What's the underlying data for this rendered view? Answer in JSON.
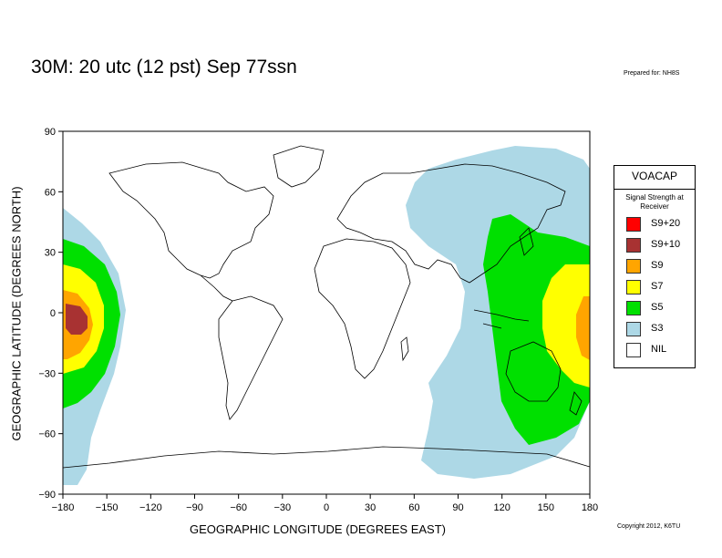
{
  "title": "30M:  20 utc (12 pst) Sep 77ssn",
  "prepared_for": "Prepared for: NH8S",
  "copyright": "Copyright 2012, K6TU",
  "xlabel": "GEOGRAPHIC LONGITUDE (DEGREES EAST)",
  "ylabel": "GEOGRAPHIC LATITUDE (DEGREES NORTH)",
  "x_ticks": [
    "−180",
    "−150",
    "−120",
    "−90",
    "−60",
    "−30",
    "0",
    "30",
    "60",
    "90",
    "120",
    "150",
    "180"
  ],
  "y_ticks": [
    "90",
    "60",
    "30",
    "0",
    "−30",
    "−60",
    "−90"
  ],
  "legend": {
    "title": "VOACAP",
    "subtitle": "Signal Strength at Receiver",
    "items": [
      {
        "label": "S9+20",
        "color": "#ff0000"
      },
      {
        "label": "S9+10",
        "color": "#a83232"
      },
      {
        "label": "S9",
        "color": "#ffa500"
      },
      {
        "label": "S7",
        "color": "#ffff00"
      },
      {
        "label": "S5",
        "color": "#00e000"
      },
      {
        "label": "S3",
        "color": "#add8e6"
      },
      {
        "label": "NIL",
        "color": "#ffffff"
      }
    ]
  },
  "map": {
    "lon_range": [
      -180,
      180
    ],
    "lat_range": [
      -90,
      90
    ],
    "center_lon": 180,
    "center_lat": 0
  }
}
